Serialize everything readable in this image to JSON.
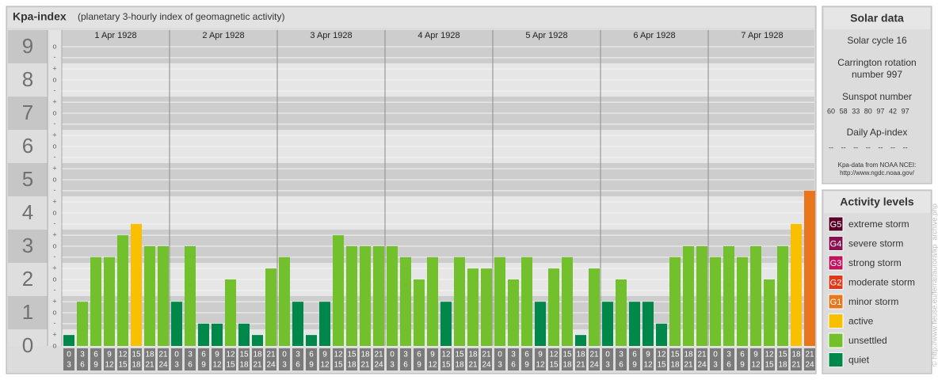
{
  "chart_data": {
    "type": "bar",
    "title": "Kpa-index",
    "subtitle": "(planetary 3-hourly index of geomagnetic activity)",
    "days": [
      "1 Apr 1928",
      "2 Apr 1928",
      "3 Apr 1928",
      "4 Apr 1928",
      "5 Apr 1928",
      "6 Apr 1928",
      "7 Apr 1928"
    ],
    "hour_starts": [
      0,
      3,
      6,
      9,
      12,
      15,
      18,
      21
    ],
    "hour_ends": [
      3,
      6,
      9,
      12,
      15,
      18,
      21,
      24
    ],
    "values": [
      0.33,
      1.33,
      2.67,
      2.67,
      3.33,
      3.67,
      3,
      3,
      1.33,
      3,
      0.67,
      0.67,
      2,
      0.67,
      0.33,
      2.33,
      2.67,
      1.33,
      0.33,
      1.33,
      3.33,
      3,
      3,
      3,
      3,
      2.67,
      2,
      2.67,
      1.33,
      2.67,
      2.33,
      2.33,
      2.67,
      2,
      2.67,
      1.33,
      2.33,
      2.67,
      0.33,
      2.33,
      1.33,
      2,
      1.33,
      1.33,
      0.67,
      2.67,
      3,
      3,
      2.67,
      3,
      2.67,
      3,
      2,
      3,
      3.67,
      4.67
    ],
    "colors": [
      "#00884a",
      "#72c02c",
      "#72c02c",
      "#72c02c",
      "#72c02c",
      "#f8c000",
      "#72c02c",
      "#72c02c",
      "#00884a",
      "#72c02c",
      "#00884a",
      "#00884a",
      "#72c02c",
      "#00884a",
      "#00884a",
      "#72c02c",
      "#72c02c",
      "#00884a",
      "#00884a",
      "#00884a",
      "#72c02c",
      "#72c02c",
      "#72c02c",
      "#72c02c",
      "#72c02c",
      "#72c02c",
      "#72c02c",
      "#72c02c",
      "#00884a",
      "#72c02c",
      "#72c02c",
      "#72c02c",
      "#72c02c",
      "#72c02c",
      "#72c02c",
      "#00884a",
      "#72c02c",
      "#72c02c",
      "#00884a",
      "#72c02c",
      "#00884a",
      "#72c02c",
      "#00884a",
      "#00884a",
      "#00884a",
      "#72c02c",
      "#72c02c",
      "#72c02c",
      "#72c02c",
      "#72c02c",
      "#72c02c",
      "#72c02c",
      "#72c02c",
      "#72c02c",
      "#f8c000",
      "#e8761a"
    ],
    "ylim": [
      0,
      9.5
    ],
    "yticks": [
      0,
      1,
      2,
      3,
      4,
      5,
      6,
      7,
      8,
      9
    ],
    "minor_yticks": [
      {
        "value": 0,
        "label": "o"
      },
      {
        "value": 0.33,
        "label": "+"
      },
      {
        "value": 0.67,
        "label": "-"
      },
      {
        "value": 1,
        "label": "o"
      },
      {
        "value": 1.33,
        "label": "+"
      },
      {
        "value": 1.67,
        "label": "-"
      },
      {
        "value": 2,
        "label": "o"
      },
      {
        "value": 2.33,
        "label": "+"
      },
      {
        "value": 2.67,
        "label": "-"
      },
      {
        "value": 3,
        "label": "o"
      },
      {
        "value": 3.33,
        "label": "+"
      },
      {
        "value": 3.67,
        "label": "-"
      },
      {
        "value": 4,
        "label": "o"
      },
      {
        "value": 4.33,
        "label": "+"
      },
      {
        "value": 4.67,
        "label": "-"
      },
      {
        "value": 5,
        "label": "o"
      },
      {
        "value": 5.33,
        "label": "+"
      },
      {
        "value": 5.67,
        "label": "-"
      },
      {
        "value": 6,
        "label": "o"
      },
      {
        "value": 6.33,
        "label": "+"
      },
      {
        "value": 6.67,
        "label": "-"
      },
      {
        "value": 7,
        "label": "o"
      },
      {
        "value": 7.33,
        "label": "+"
      },
      {
        "value": 7.67,
        "label": "-"
      },
      {
        "value": 8,
        "label": "o"
      },
      {
        "value": 8.33,
        "label": "+"
      },
      {
        "value": 8.67,
        "label": "-"
      },
      {
        "value": 9,
        "label": "o"
      }
    ]
  },
  "solar_data": {
    "title": "Solar data",
    "cycle": "Solar cycle 16",
    "carrington": [
      "Carrington rotation",
      "number 997"
    ],
    "sunspot_label": "Sunspot number",
    "sunspot_numbers": [
      60,
      58,
      33,
      80,
      97,
      42,
      97
    ],
    "ap_label": "Daily Ap-index",
    "ap_values": [
      "--",
      "--",
      "--",
      "--",
      "--",
      "--",
      "--"
    ],
    "source": [
      "Kpa-data from NOAA NCEI:",
      "http://www.ngdc.noaa.gov/"
    ]
  },
  "activity_levels": {
    "title": "Activity levels",
    "items": [
      {
        "badge": "G5",
        "label": "extreme storm",
        "color": "#5a0028"
      },
      {
        "badge": "G4",
        "label": "severe storm",
        "color": "#8a1050"
      },
      {
        "badge": "G3",
        "label": "strong storm",
        "color": "#c0145c"
      },
      {
        "badge": "G2",
        "label": "moderate storm",
        "color": "#e03818"
      },
      {
        "badge": "G1",
        "label": "minor storm",
        "color": "#e8761a"
      },
      {
        "label": "active",
        "color": "#f8c000"
      },
      {
        "label": "unsettled",
        "color": "#72c02c"
      },
      {
        "label": "quiet",
        "color": "#00884a"
      }
    ]
  },
  "credit": "© http://www.fleuse.eu/ferrar/aurora/kp_archive.php"
}
